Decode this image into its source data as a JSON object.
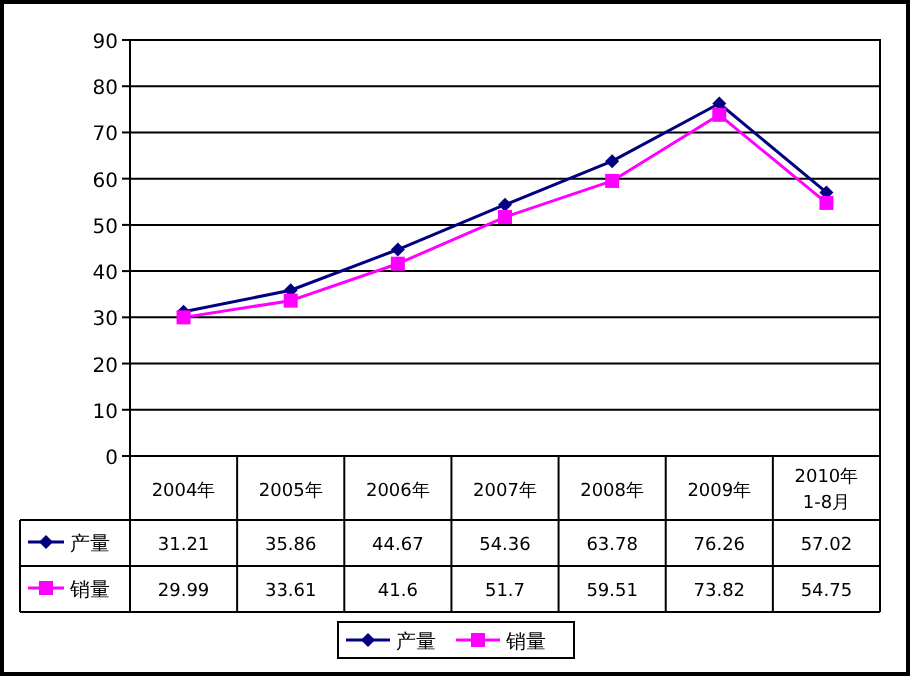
{
  "chart_data": {
    "type": "line",
    "categories": [
      "2004年",
      "2005年",
      "2006年",
      "2007年",
      "2008年",
      "2009年",
      "2010年1-8月"
    ],
    "series": [
      {
        "name": "产量",
        "color": "#000080",
        "marker": "diamond",
        "values": [
          31.21,
          35.86,
          44.67,
          54.36,
          63.78,
          76.26,
          57.02
        ]
      },
      {
        "name": "销量",
        "color": "#ff00ff",
        "marker": "square",
        "values": [
          29.99,
          33.61,
          41.6,
          51.7,
          59.51,
          73.82,
          54.75
        ]
      }
    ],
    "ylim": [
      0,
      90
    ],
    "yticks": [
      0,
      10,
      20,
      30,
      40,
      50,
      60,
      70,
      80,
      90
    ],
    "grid": "y",
    "legend": "bottom",
    "data_labels": true,
    "line_style": "solid"
  }
}
